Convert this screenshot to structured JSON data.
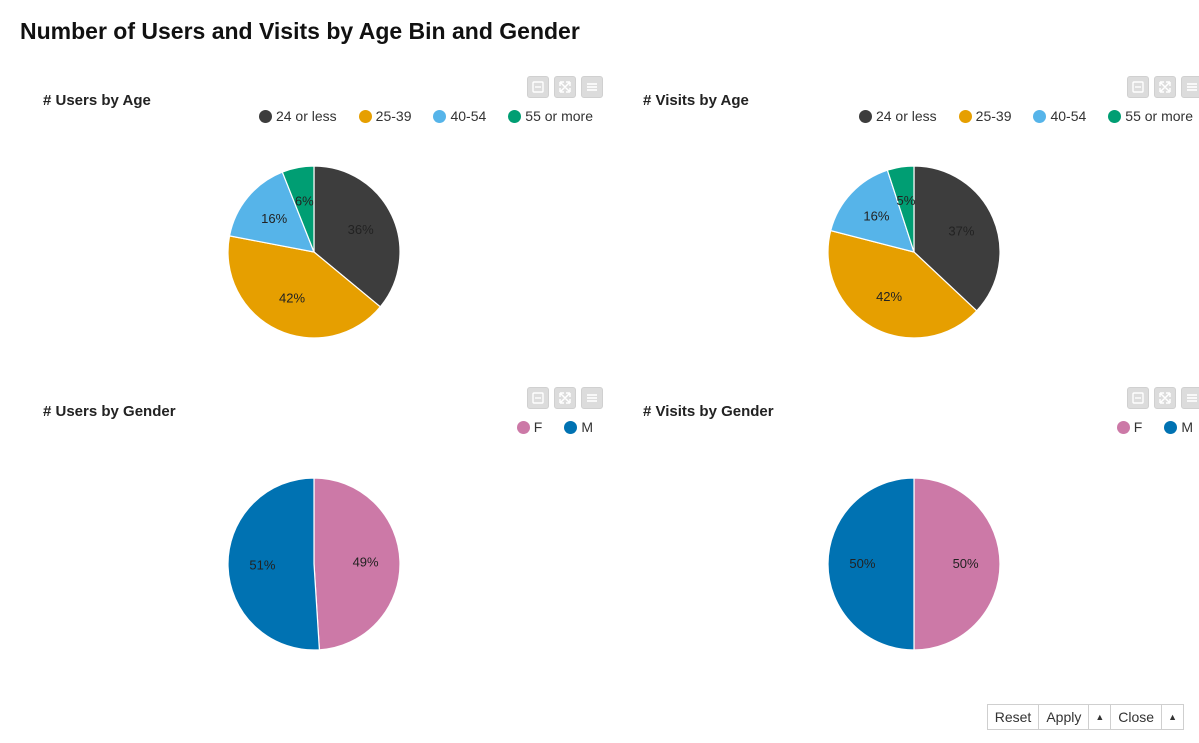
{
  "page": {
    "title": "Number of Users and Visits by Age Bin and Gender"
  },
  "colors": {
    "24 or less": "#3d3d3d",
    "25-39": "#e69f00",
    "40-54": "#56b4e9",
    "55 or more": "#009e73",
    "F": "#cc79a7",
    "M": "#0072b2"
  },
  "toolbar_icons": [
    "minimize-icon",
    "expand-icon",
    "menu-icon"
  ],
  "footer": {
    "reset": "Reset",
    "apply": "Apply",
    "close": "Close",
    "caret": "▲"
  },
  "chart_data": [
    {
      "type": "pie",
      "title": "# Users by Age",
      "legend_placement": "top-right",
      "categories": [
        "24 or less",
        "25-39",
        "40-54",
        "55 or more"
      ],
      "values": [
        36,
        42,
        16,
        6
      ],
      "labels": [
        "36%",
        "42%",
        "16%",
        "6%"
      ]
    },
    {
      "type": "pie",
      "title": "# Visits by Age",
      "legend_placement": "top-right",
      "categories": [
        "24 or less",
        "25-39",
        "40-54",
        "55 or more"
      ],
      "values": [
        37,
        42,
        16,
        5
      ],
      "labels": [
        "37%",
        "42%",
        "16%",
        "5%"
      ]
    },
    {
      "type": "pie",
      "title": "# Users by Gender",
      "legend_placement": "top-right",
      "categories": [
        "F",
        "M"
      ],
      "values": [
        49,
        51
      ],
      "labels": [
        "49%",
        "51%"
      ]
    },
    {
      "type": "pie",
      "title": "# Visits by Gender",
      "legend_placement": "top-right",
      "categories": [
        "F",
        "M"
      ],
      "values": [
        50,
        50
      ],
      "labels": [
        "50%",
        "50%"
      ]
    }
  ]
}
